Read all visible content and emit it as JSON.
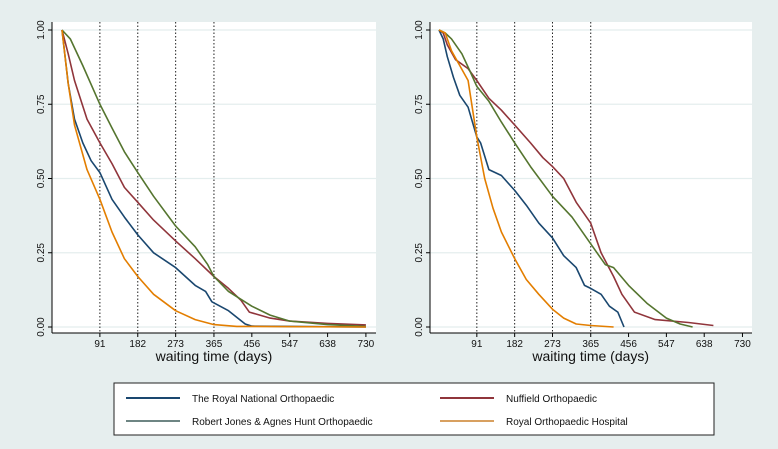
{
  "chart_data": [
    {
      "type": "line",
      "panel": "left",
      "xlabel": "waiting time (days)",
      "ylabel": "",
      "xticks": [
        91,
        182,
        273,
        365,
        456,
        547,
        638,
        730
      ],
      "yticks": [
        "0.00",
        "0.25",
        "0.50",
        "0.75",
        "1.00"
      ],
      "xlim": [
        0,
        730
      ],
      "ylim": [
        0,
        1
      ],
      "reference_lines_x": [
        91,
        182,
        273,
        365
      ],
      "series": [
        {
          "name": "The Royal National Orthopaedic",
          "color": "#1a476f",
          "points": [
            [
              0,
              1
            ],
            [
              15,
              0.82
            ],
            [
              30,
              0.7
            ],
            [
              50,
              0.62
            ],
            [
              70,
              0.56
            ],
            [
              91,
              0.52
            ],
            [
              120,
              0.43
            ],
            [
              150,
              0.37
            ],
            [
              182,
              0.31
            ],
            [
              220,
              0.25
            ],
            [
              273,
              0.2
            ],
            [
              320,
              0.14
            ],
            [
              345,
              0.12
            ],
            [
              360,
              0.085
            ],
            [
              400,
              0.055
            ],
            [
              440,
              0.01
            ],
            [
              456,
              0.003
            ],
            [
              550,
              0.002
            ],
            [
              730,
              0
            ]
          ]
        },
        {
          "name": "Nuffield Orthopaedic",
          "color": "#90353b",
          "points": [
            [
              0,
              1
            ],
            [
              15,
              0.92
            ],
            [
              30,
              0.83
            ],
            [
              60,
              0.7
            ],
            [
              91,
              0.62
            ],
            [
              120,
              0.55
            ],
            [
              150,
              0.47
            ],
            [
              182,
              0.42
            ],
            [
              220,
              0.36
            ],
            [
              273,
              0.29
            ],
            [
              320,
              0.23
            ],
            [
              365,
              0.17
            ],
            [
              400,
              0.13
            ],
            [
              430,
              0.09
            ],
            [
              450,
              0.05
            ],
            [
              500,
              0.03
            ],
            [
              547,
              0.02
            ],
            [
              638,
              0.012
            ],
            [
              730,
              0.007
            ]
          ]
        },
        {
          "name": "Robert Jones & Agnes Hunt Orthopaedic",
          "color": "#55752f",
          "points": [
            [
              0,
              1
            ],
            [
              20,
              0.97
            ],
            [
              50,
              0.88
            ],
            [
              91,
              0.75
            ],
            [
              120,
              0.67
            ],
            [
              150,
              0.59
            ],
            [
              182,
              0.52
            ],
            [
              220,
              0.44
            ],
            [
              273,
              0.34
            ],
            [
              320,
              0.27
            ],
            [
              350,
              0.21
            ],
            [
              365,
              0.17
            ],
            [
              400,
              0.12
            ],
            [
              456,
              0.07
            ],
            [
              500,
              0.04
            ],
            [
              547,
              0.02
            ],
            [
              638,
              0.008
            ],
            [
              730,
              0.002
            ]
          ]
        },
        {
          "name": "Royal Orthopaedic Hospital",
          "color": "#e37e00",
          "points": [
            [
              0,
              1
            ],
            [
              15,
              0.82
            ],
            [
              30,
              0.68
            ],
            [
              60,
              0.53
            ],
            [
              91,
              0.43
            ],
            [
              120,
              0.32
            ],
            [
              150,
              0.23
            ],
            [
              182,
              0.17
            ],
            [
              220,
              0.11
            ],
            [
              273,
              0.055
            ],
            [
              320,
              0.025
            ],
            [
              365,
              0.008
            ],
            [
              420,
              0.002
            ],
            [
              730,
              0
            ]
          ]
        }
      ]
    },
    {
      "type": "line",
      "panel": "right",
      "xlabel": "waiting time (days)",
      "ylabel": "",
      "xticks": [
        91,
        182,
        273,
        365,
        456,
        547,
        638,
        730
      ],
      "yticks": [
        "0.00",
        "0.25",
        "0.50",
        "0.75",
        "1.00"
      ],
      "xlim": [
        0,
        730
      ],
      "ylim": [
        0,
        1
      ],
      "reference_lines_x": [
        91,
        182,
        273,
        365
      ],
      "series": [
        {
          "name": "The Royal National Orthopaedic",
          "color": "#1a476f",
          "points": [
            [
              0,
              1
            ],
            [
              10,
              0.97
            ],
            [
              20,
              0.91
            ],
            [
              35,
              0.84
            ],
            [
              50,
              0.78
            ],
            [
              70,
              0.74
            ],
            [
              91,
              0.64
            ],
            [
              100,
              0.62
            ],
            [
              120,
              0.53
            ],
            [
              150,
              0.51
            ],
            [
              182,
              0.46
            ],
            [
              210,
              0.41
            ],
            [
              240,
              0.35
            ],
            [
              273,
              0.3
            ],
            [
              300,
              0.24
            ],
            [
              330,
              0.2
            ],
            [
              350,
              0.14
            ],
            [
              365,
              0.13
            ],
            [
              390,
              0.11
            ],
            [
              410,
              0.07
            ],
            [
              430,
              0.05
            ],
            [
              445,
              0
            ]
          ]
        },
        {
          "name": "Nuffield Orthopaedic",
          "color": "#90353b",
          "points": [
            [
              0,
              1
            ],
            [
              10,
              0.99
            ],
            [
              20,
              0.95
            ],
            [
              40,
              0.9
            ],
            [
              70,
              0.87
            ],
            [
              91,
              0.83
            ],
            [
              120,
              0.77
            ],
            [
              150,
              0.73
            ],
            [
              182,
              0.68
            ],
            [
              220,
              0.62
            ],
            [
              250,
              0.57
            ],
            [
              273,
              0.54
            ],
            [
              300,
              0.5
            ],
            [
              330,
              0.42
            ],
            [
              365,
              0.35
            ],
            [
              390,
              0.25
            ],
            [
              420,
              0.17
            ],
            [
              440,
              0.11
            ],
            [
              470,
              0.05
            ],
            [
              520,
              0.025
            ],
            [
              600,
              0.015
            ],
            [
              660,
              0.005
            ]
          ]
        },
        {
          "name": "Robert Jones & Agnes Hunt Orthopaedic",
          "color": "#55752f",
          "points": [
            [
              0,
              1
            ],
            [
              15,
              0.99
            ],
            [
              30,
              0.97
            ],
            [
              55,
              0.92
            ],
            [
              75,
              0.86
            ],
            [
              91,
              0.81
            ],
            [
              120,
              0.76
            ],
            [
              150,
              0.69
            ],
            [
              182,
              0.62
            ],
            [
              220,
              0.54
            ],
            [
              273,
              0.44
            ],
            [
              320,
              0.37
            ],
            [
              365,
              0.28
            ],
            [
              400,
              0.21
            ],
            [
              420,
              0.2
            ],
            [
              456,
              0.14
            ],
            [
              500,
              0.08
            ],
            [
              547,
              0.03
            ],
            [
              580,
              0.01
            ],
            [
              610,
              0
            ]
          ]
        },
        {
          "name": "Royal Orthopaedic Hospital",
          "color": "#e37e00",
          "points": [
            [
              0,
              1
            ],
            [
              15,
              0.99
            ],
            [
              30,
              0.93
            ],
            [
              50,
              0.88
            ],
            [
              70,
              0.83
            ],
            [
              91,
              0.64
            ],
            [
              110,
              0.5
            ],
            [
              130,
              0.4
            ],
            [
              150,
              0.32
            ],
            [
              182,
              0.23
            ],
            [
              210,
              0.16
            ],
            [
              240,
              0.11
            ],
            [
              273,
              0.06
            ],
            [
              300,
              0.03
            ],
            [
              330,
              0.01
            ],
            [
              365,
              0.005
            ],
            [
              420,
              0
            ]
          ]
        }
      ]
    }
  ],
  "legend": {
    "placement": "bottom",
    "entries": [
      {
        "label": "The Royal National Orthopaedic",
        "color": "#1a476f"
      },
      {
        "label": "Nuffield Orthopaedic",
        "color": "#90353b"
      },
      {
        "label": "Robert Jones & Agnes Hunt Orthopaedic",
        "color": "#6e8583"
      },
      {
        "label": "Royal Orthopaedic Hospital",
        "color": "#d8a060"
      }
    ]
  }
}
